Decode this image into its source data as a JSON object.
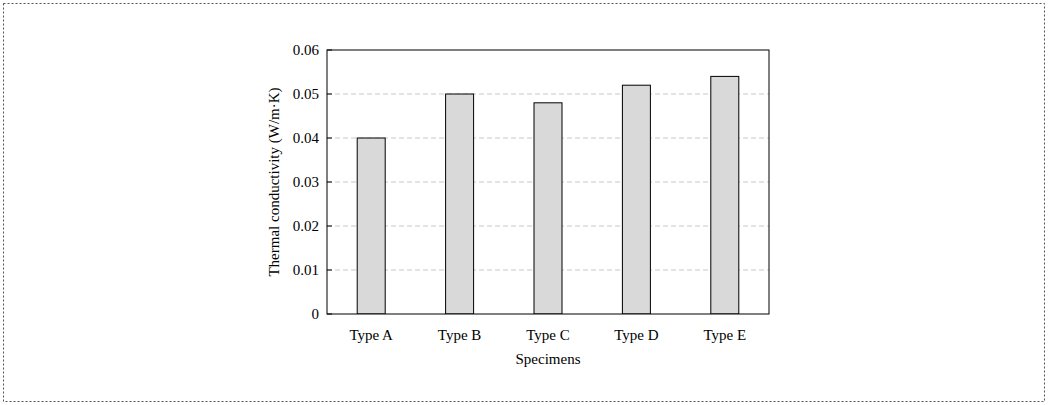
{
  "chart_data": {
    "type": "bar",
    "x_label": "Specimens",
    "y_label": "Thermal conductivity (W/m·K)",
    "categories": [
      "Type A",
      "Type B",
      "Type C",
      "Type D",
      "Type E"
    ],
    "values": [
      0.04,
      0.05,
      0.048,
      0.052,
      0.054
    ],
    "color": "#d9d9d9",
    "ylim": [
      0,
      0.06
    ],
    "yticks": [
      0,
      0.01,
      0.02,
      0.03,
      0.04,
      0.05,
      0.06
    ],
    "grid": true
  }
}
